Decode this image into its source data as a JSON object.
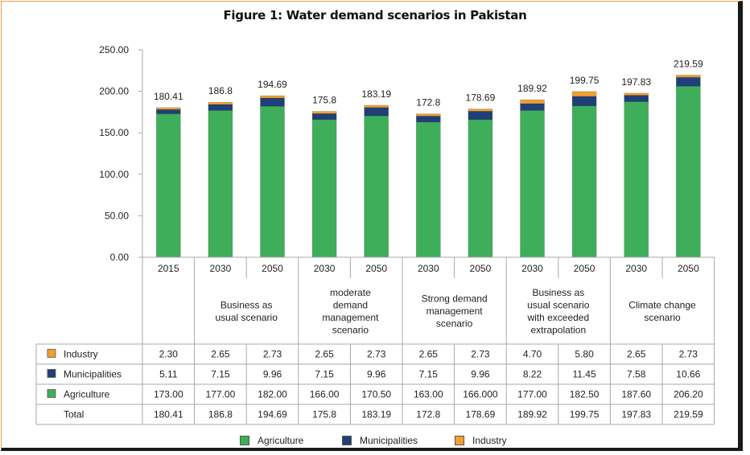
{
  "title": "Figure 1: Water demand scenarios in Pakistan",
  "chart_data": {
    "type": "bar",
    "stacked": true,
    "title": "Figure 1: Water demand scenarios in Pakistan",
    "ylim": [
      0,
      250
    ],
    "yticks": [
      "0.00",
      "50.00",
      "100.00",
      "150.00",
      "200.00",
      "250.00"
    ],
    "categories": [
      "2015",
      "2030",
      "2050",
      "2030",
      "2050",
      "2030",
      "2050",
      "2030",
      "2050",
      "2030",
      "2050"
    ],
    "groups": [
      {
        "label": "",
        "span": 1
      },
      {
        "label": "Business as usual scenario",
        "span": 2
      },
      {
        "label": "moderate demand management scenario",
        "span": 2
      },
      {
        "label": "Strong demand management scenario",
        "span": 2
      },
      {
        "label": "Business as usual scenario with exceeded extrapolation",
        "span": 2
      },
      {
        "label": "Climate change scenario",
        "span": 2
      }
    ],
    "series": [
      {
        "name": "Agriculture",
        "color": "#3fae5a",
        "values": [
          173.0,
          177.0,
          182.0,
          166.0,
          170.5,
          163.0,
          166.0,
          177.0,
          182.5,
          187.6,
          206.2
        ],
        "labels": [
          "173.00",
          "177.00",
          "182.00",
          "166.00",
          "170.50",
          "163.00",
          "166.000",
          "177.00",
          "182.50",
          "187.60",
          "206.20"
        ]
      },
      {
        "name": "Municipalities",
        "color": "#1f3f78",
        "values": [
          5.11,
          7.15,
          9.96,
          7.15,
          9.96,
          7.15,
          9.96,
          8.22,
          11.45,
          7.58,
          10.66
        ],
        "labels": [
          "5.11",
          "7.15",
          "9.96",
          "7.15",
          "9.96",
          "7.15",
          "9.96",
          "8.22",
          "11.45",
          "7.58",
          "10.66"
        ]
      },
      {
        "name": "Industry",
        "color": "#f0a030",
        "values": [
          2.3,
          2.65,
          2.73,
          2.65,
          2.73,
          2.65,
          2.73,
          4.7,
          5.8,
          2.65,
          2.73
        ],
        "labels": [
          "2.30",
          "2.65",
          "2.73",
          "2.65",
          "2.73",
          "2.65",
          "2.73",
          "4.70",
          "5.80",
          "2.65",
          "2.73"
        ]
      }
    ],
    "totals": [
      180.41,
      186.8,
      194.69,
      175.8,
      183.19,
      172.8,
      178.69,
      189.92,
      199.75,
      197.83,
      219.59
    ],
    "total_labels": [
      "180.41",
      "186.8",
      "194.69",
      "175.8",
      "183.19",
      "172.8",
      "178.69",
      "189.92",
      "199.75",
      "197.83",
      "219.59"
    ],
    "table_rows": [
      {
        "name": "Industry",
        "series": "Industry",
        "marker": true
      },
      {
        "name": "Municipalities",
        "series": "Municipalities",
        "marker": true
      },
      {
        "name": "Agriculture",
        "series": "Agriculture",
        "marker": true
      },
      {
        "name": "Total",
        "series": "Total",
        "marker": false
      }
    ],
    "legend": [
      "Agriculture",
      "Municipalities",
      "Industry"
    ],
    "legend_position": "bottom",
    "grid": false
  }
}
